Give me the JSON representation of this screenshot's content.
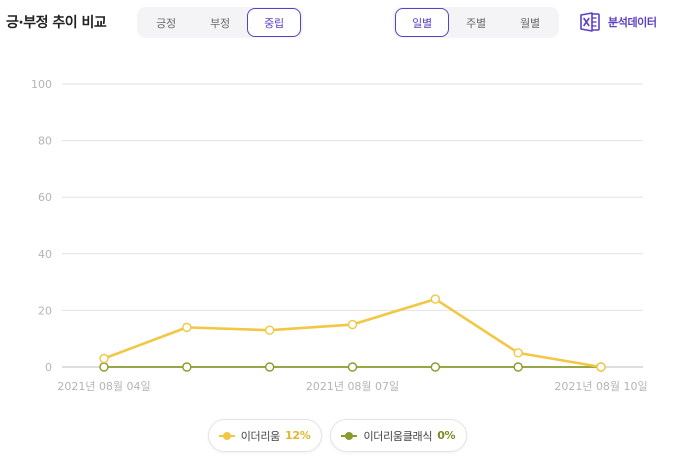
{
  "header": {
    "title": "긍·부정 추이 비교",
    "sentiment_tabs": [
      {
        "label": "긍정",
        "active": false
      },
      {
        "label": "부정",
        "active": false
      },
      {
        "label": "중립",
        "active": true
      }
    ],
    "period_tabs": [
      {
        "label": "일별",
        "active": true
      },
      {
        "label": "주별",
        "active": false
      },
      {
        "label": "월별",
        "active": false
      }
    ],
    "export_label": "분석데이터",
    "export_icon": "excel-icon"
  },
  "colors": {
    "accent": "#5b3fc4",
    "series_1": "#f2c744",
    "series_2": "#8a9a2b",
    "grid": "#e2e2e2"
  },
  "chart_data": {
    "type": "line",
    "x": [
      "2021-08-04",
      "2021-08-05",
      "2021-08-06",
      "2021-08-07",
      "2021-08-08",
      "2021-08-09",
      "2021-08-10"
    ],
    "x_tick_labels": [
      "2021년 08월 04일",
      "2021년 08월 07일",
      "2021년 08월 10일"
    ],
    "y_ticks": [
      0,
      20,
      40,
      60,
      80,
      100
    ],
    "ylim": [
      0,
      100
    ],
    "grid": true,
    "legend_position": "bottom-center",
    "series": [
      {
        "name": "이더리움",
        "share": "12%",
        "color": "#f2c744",
        "values": [
          3,
          14,
          13,
          15,
          24,
          5,
          0
        ]
      },
      {
        "name": "이더리움클래식",
        "share": "0%",
        "color": "#8a9a2b",
        "values": [
          0,
          0,
          0,
          0,
          0,
          0,
          0
        ]
      }
    ]
  }
}
